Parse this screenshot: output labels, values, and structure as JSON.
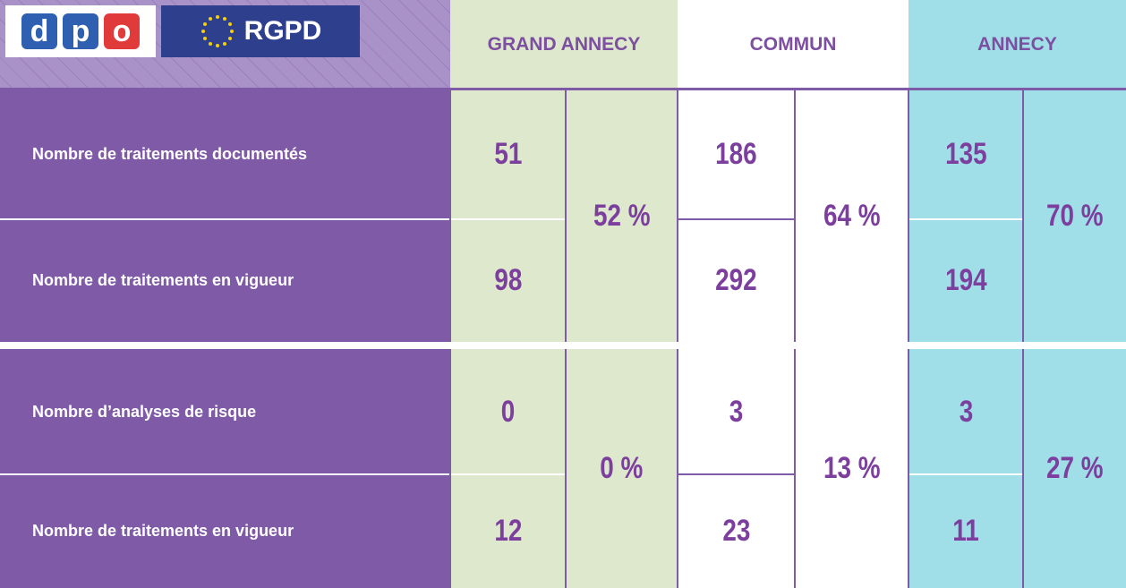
{
  "logos": {
    "dpo_letters": [
      "d",
      "p",
      "o"
    ],
    "rgpd": "RGPD"
  },
  "columns": [
    "GRAND ANNECY",
    "COMMUN",
    "ANNECY"
  ],
  "groups": [
    {
      "rows": [
        {
          "label": "Nombre de traitements documentés",
          "values": [
            51,
            186,
            135
          ]
        },
        {
          "label": "Nombre de traitements en vigueur",
          "values": [
            98,
            292,
            194
          ]
        }
      ],
      "percents": [
        "52 %",
        "64 %",
        "70 %"
      ]
    },
    {
      "rows": [
        {
          "label": "Nombre d’analyses de risque",
          "values": [
            0,
            3,
            3
          ]
        },
        {
          "label": "Nombre de traitements en vigueur",
          "values": [
            12,
            23,
            11
          ]
        }
      ],
      "percents": [
        "0 %",
        "13 %",
        "27 %"
      ]
    }
  ]
}
